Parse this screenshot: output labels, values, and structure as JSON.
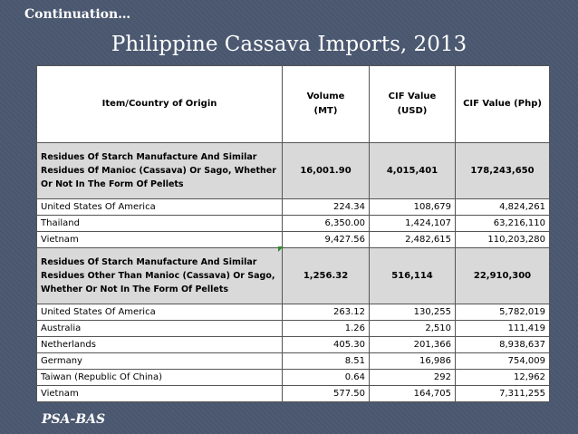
{
  "header": {
    "continuation": "Continuation…",
    "title": "Philippine Cassava Imports, 2013"
  },
  "table": {
    "columns": [
      "Item/Country of Origin",
      "Volume\n(MT)",
      "CIF Value\n(USD)",
      "CIF Value (Php)"
    ],
    "groups": [
      {
        "item": "Residues Of Starch Manufacture And Similar Residues Of Manioc (Cassava) Or Sago, Whether Or Not In The Form Of Pellets",
        "volume": "16,001.90",
        "cif_usd": "4,015,401",
        "cif_php": "178,243,650",
        "rows": [
          {
            "country": "United States Of America",
            "volume": "224.34",
            "cif_usd": "108,679",
            "cif_php": "4,824,261"
          },
          {
            "country": "Thailand",
            "volume": "6,350.00",
            "cif_usd": "1,424,107",
            "cif_php": "63,216,110"
          },
          {
            "country": "Vietnam",
            "volume": "9,427.56",
            "cif_usd": "2,482,615",
            "cif_php": "110,203,280"
          }
        ]
      },
      {
        "item": "Residues Of Starch Manufacture And Similar Residues Other Than Manioc (Cassava) Or Sago, Whether Or Not In The Form Of Pellets",
        "volume": "1,256.32",
        "cif_usd": "516,114",
        "cif_php": "22,910,300",
        "rows": [
          {
            "country": "United States Of America",
            "volume": "263.12",
            "cif_usd": "130,255",
            "cif_php": "5,782,019"
          },
          {
            "country": "Australia",
            "volume": "1.26",
            "cif_usd": "2,510",
            "cif_php": "111,419"
          },
          {
            "country": "Netherlands",
            "volume": "405.30",
            "cif_usd": "201,366",
            "cif_php": "8,938,637"
          },
          {
            "country": "Germany",
            "volume": "8.51",
            "cif_usd": "16,986",
            "cif_php": "754,009"
          },
          {
            "country": "Taiwan (Republic Of China)",
            "volume": "0.64",
            "cif_usd": "292",
            "cif_php": "12,962"
          },
          {
            "country": "Vietnam",
            "volume": "577.50",
            "cif_usd": "164,705",
            "cif_php": "7,311,255"
          }
        ]
      }
    ]
  },
  "footer": {
    "source": "PSA-BAS"
  }
}
